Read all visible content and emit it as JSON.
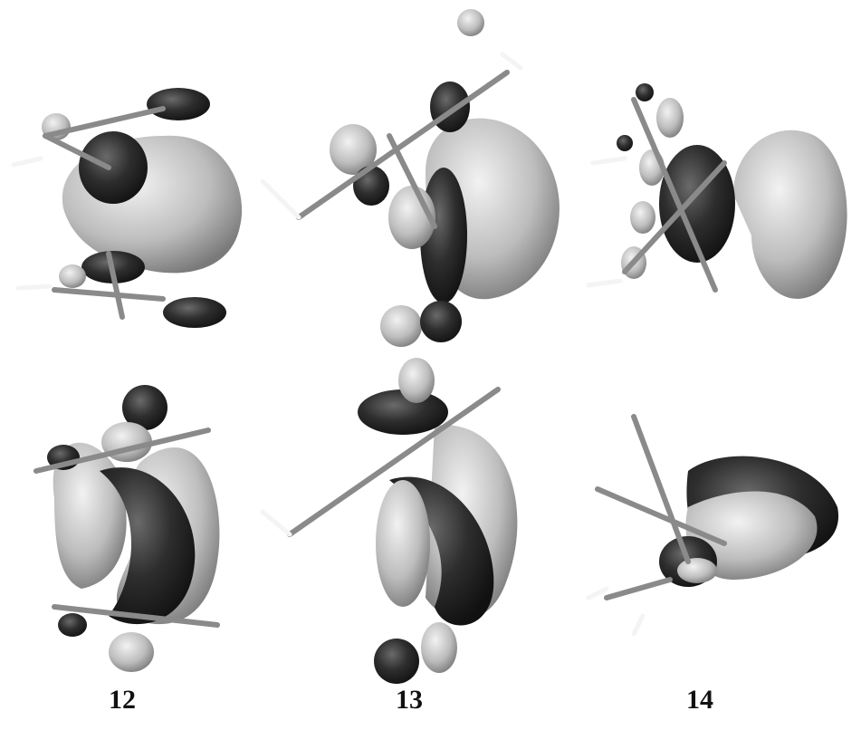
{
  "labels": [
    "12",
    "13",
    "14"
  ]
}
